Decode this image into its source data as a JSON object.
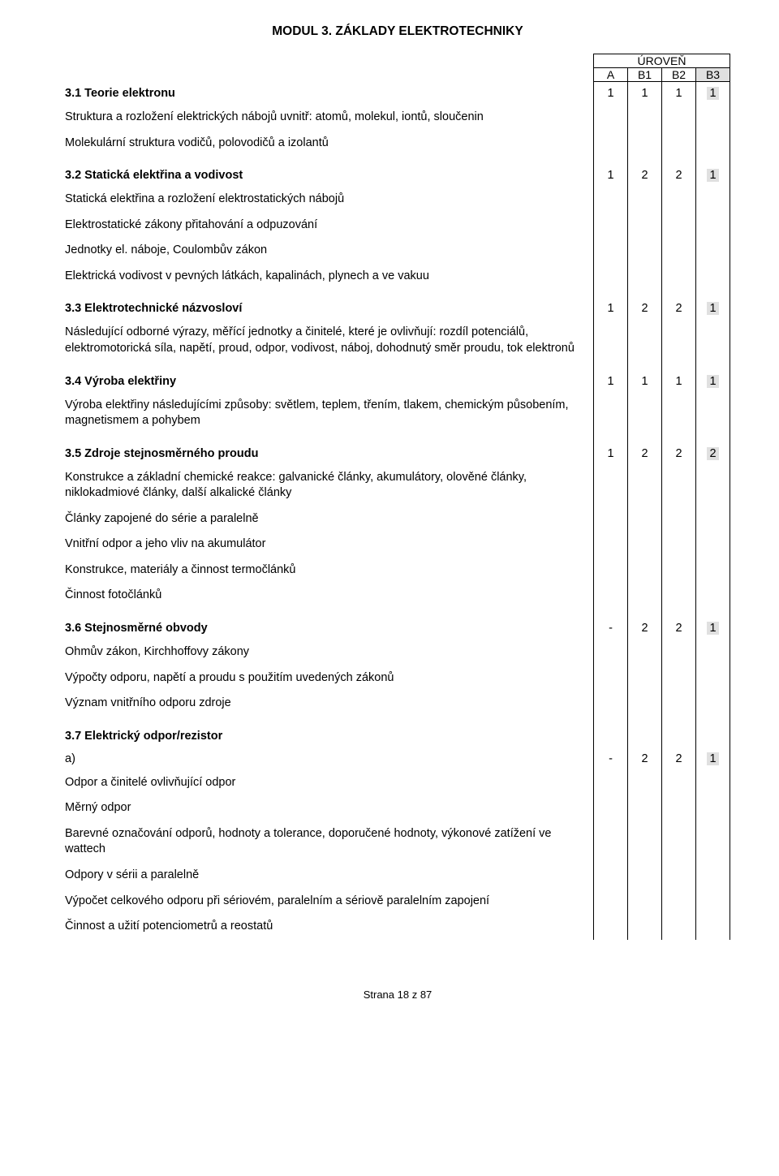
{
  "module_title": "MODUL 3. ZÁKLADY ELEKTROTECHNIKY",
  "level_header": {
    "title": "ÚROVEŇ",
    "cols": [
      "A",
      "B1",
      "B2",
      "B3"
    ]
  },
  "colors": {
    "background": "#ffffff",
    "text": "#000000",
    "border": "#000000",
    "b3_fill": "#e0e0e0"
  },
  "rows": [
    {
      "type": "section",
      "title": "3.1 Teorie elektronu",
      "levels": [
        "1",
        "1",
        "1",
        "1"
      ],
      "b3_hl": true
    },
    {
      "type": "content",
      "text": "Struktura a rozložení elektrických nábojů uvnitř: atomů, molekul, iontů, sloučenin"
    },
    {
      "type": "content",
      "text": "Molekulární struktura vodičů, polovodičů a izolantů"
    },
    {
      "type": "spacer"
    },
    {
      "type": "section",
      "title": "3.2 Statická elektřina a vodivost",
      "levels": [
        "1",
        "2",
        "2",
        "1"
      ],
      "b3_hl": true
    },
    {
      "type": "content",
      "text": "Statická elektřina a rozložení elektrostatických nábojů"
    },
    {
      "type": "content",
      "text": "Elektrostatické zákony přitahování a odpuzování"
    },
    {
      "type": "content",
      "text": "Jednotky el. náboje, Coulombův zákon"
    },
    {
      "type": "content",
      "text": "Elektrická vodivost v pevných látkách, kapalinách, plynech a ve vakuu"
    },
    {
      "type": "spacer"
    },
    {
      "type": "section",
      "title": "3.3 Elektrotechnické názvosloví",
      "levels": [
        "1",
        "2",
        "2",
        "1"
      ],
      "b3_hl": true
    },
    {
      "type": "content",
      "text": "Následující odborné výrazy, měřící jednotky a činitelé, které je ovlivňují: rozdíl potenciálů, elektromotorická síla, napětí, proud, odpor, vodivost, náboj, dohodnutý směr proudu, tok elektronů"
    },
    {
      "type": "spacer"
    },
    {
      "type": "section",
      "title": "3.4 Výroba elektřiny",
      "levels": [
        "1",
        "1",
        "1",
        "1"
      ],
      "b3_hl": true
    },
    {
      "type": "content",
      "text": "Výroba elektřiny následujícími způsoby: světlem, teplem, třením, tlakem, chemickým působením, magnetismem a pohybem"
    },
    {
      "type": "spacer"
    },
    {
      "type": "section",
      "title": "3.5 Zdroje stejnosměrného proudu",
      "levels": [
        "1",
        "2",
        "2",
        "2"
      ],
      "b3_hl": true
    },
    {
      "type": "content",
      "text": "Konstrukce a základní chemické reakce: galvanické články, akumulátory, olověné články, niklokadmiové články, další alkalické články"
    },
    {
      "type": "content",
      "text": "Články zapojené do série a paralelně"
    },
    {
      "type": "content",
      "text": "Vnitřní odpor a jeho vliv na akumulátor"
    },
    {
      "type": "content",
      "text": "Konstrukce, materiály a činnost termočlánků"
    },
    {
      "type": "content",
      "text": "Činnost fotočlánků"
    },
    {
      "type": "spacer"
    },
    {
      "type": "section",
      "title": "3.6 Stejnosměrné obvody",
      "levels": [
        "-",
        "2",
        "2",
        "1"
      ],
      "b3_hl": true
    },
    {
      "type": "content",
      "text": "Ohmův zákon, Kirchhoffovy zákony"
    },
    {
      "type": "content",
      "text": "Výpočty odporu, napětí a proudu s použitím uvedených zákonů"
    },
    {
      "type": "content",
      "text": "Význam vnitřního odporu zdroje"
    },
    {
      "type": "spacer"
    },
    {
      "type": "section",
      "title": "3.7 Elektrický odpor/rezistor",
      "levels": [
        "",
        "",
        "",
        ""
      ],
      "b3_hl": false
    },
    {
      "type": "section",
      "title": "a)",
      "bold": false,
      "levels": [
        "-",
        "2",
        "2",
        "1"
      ],
      "b3_hl": true
    },
    {
      "type": "content",
      "text": "Odpor a činitelé ovlivňující odpor"
    },
    {
      "type": "content",
      "text": "Měrný odpor"
    },
    {
      "type": "content",
      "text": "Barevné označování odporů, hodnoty a tolerance, doporučené hodnoty, výkonové zatížení ve wattech"
    },
    {
      "type": "content",
      "text": "Odpory v sérii a paralelně"
    },
    {
      "type": "content",
      "text": "Výpočet celkového odporu při sériovém, paralelním a sériově paralelním zapojení"
    },
    {
      "type": "content",
      "text": "Činnost a užití potenciometrů a reostatů"
    }
  ],
  "footer": "Strana 18 z 87"
}
